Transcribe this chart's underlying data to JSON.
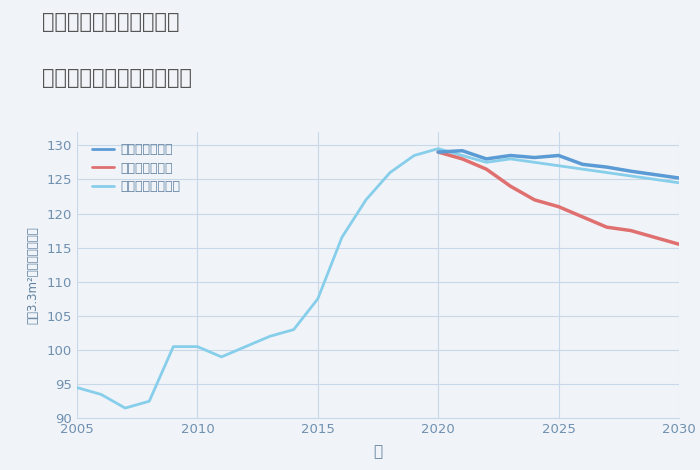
{
  "title_line1": "兵庫県姫路市飾東町庄の",
  "title_line2": "中古マンションの価格推移",
  "xlabel": "年",
  "ylabel": "坪（3.3m²）単価（万円）",
  "background_color": "#f0f4f8",
  "plot_bg_color": "#f0f4f8",
  "xlim": [
    2005,
    2030
  ],
  "ylim": [
    90,
    132
  ],
  "yticks": [
    90,
    95,
    100,
    105,
    110,
    115,
    120,
    125,
    130
  ],
  "xticks": [
    2005,
    2010,
    2015,
    2020,
    2025,
    2030
  ],
  "legend_labels": [
    "グッドシナリオ",
    "バッドシナリオ",
    "ノーマルシナリオ"
  ],
  "normal_color": "#87ceeb",
  "good_color": "#5b9bd5",
  "bad_color": "#e07070",
  "normal_x": [
    2005,
    2006,
    2007,
    2008,
    2009,
    2010,
    2011,
    2012,
    2013,
    2014,
    2015,
    2016,
    2017,
    2018,
    2019,
    2020,
    2021,
    2022,
    2023,
    2024,
    2025,
    2026,
    2027,
    2028,
    2029,
    2030
  ],
  "normal_y": [
    94.5,
    93.5,
    91.5,
    92.5,
    100.5,
    100.5,
    99.0,
    100.5,
    102.0,
    103.0,
    107.5,
    116.5,
    122.0,
    126.0,
    128.5,
    129.5,
    128.5,
    127.5,
    128.0,
    127.5,
    127.0,
    126.5,
    126.0,
    125.5,
    125.0,
    124.5
  ],
  "good_x": [
    2020,
    2021,
    2022,
    2023,
    2024,
    2025,
    2026,
    2027,
    2028,
    2029,
    2030
  ],
  "good_y": [
    129.0,
    129.2,
    128.0,
    128.5,
    128.2,
    128.5,
    127.2,
    126.8,
    126.2,
    125.7,
    125.2
  ],
  "bad_x": [
    2020,
    2021,
    2022,
    2023,
    2024,
    2025,
    2026,
    2027,
    2028,
    2029,
    2030
  ],
  "bad_y": [
    129.0,
    128.0,
    126.5,
    124.0,
    122.0,
    121.0,
    119.5,
    118.0,
    117.5,
    116.5,
    115.5
  ],
  "grid_color": "#c8d8e8",
  "title_color": "#555555",
  "axis_color": "#6080a0",
  "tick_color": "#7090b0"
}
